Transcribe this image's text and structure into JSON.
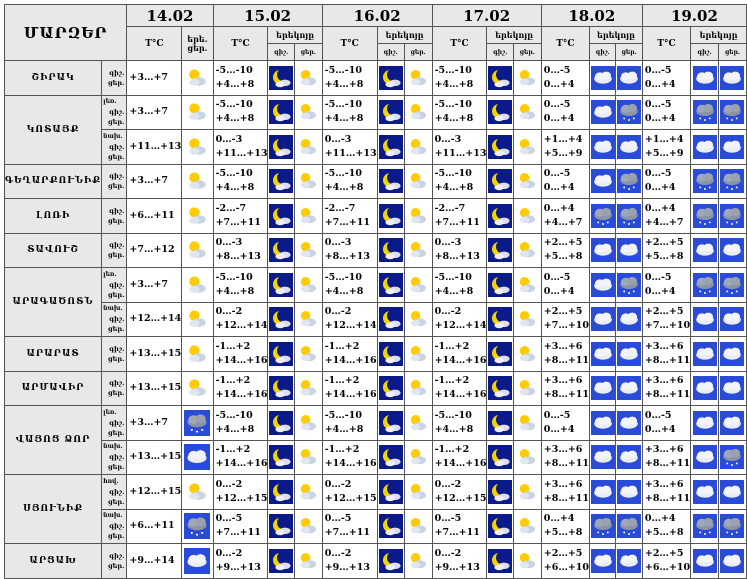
{
  "header": {
    "title": "ՄԱՐԶԵՐ",
    "unit": "T°C",
    "day_short": "երե.",
    "night_short": "ցեր.",
    "night_long": "երեկոյը",
    "night_abbr": "գիշ.",
    "day_abbr": "ցեր.",
    "dates": [
      "14.02",
      "15.02",
      "16.02",
      "17.02",
      "18.02",
      "19.02"
    ]
  },
  "regions": [
    {
      "name": "ՇԻՐԱԿ",
      "sub": "",
      "rows": [
        {
          "temps": [
            [
              "",
              "+3…+7"
            ],
            [
              "-5…-10",
              "+4…+8"
            ],
            [
              "-5…-10",
              "+4…+8"
            ],
            [
              "-5…-10",
              "+4…+8"
            ],
            [
              "0…-5",
              "0…+4"
            ],
            [
              "0…-5",
              "0…+4"
            ]
          ],
          "icons": [
            [
              "partly"
            ],
            [
              "moon",
              "partly"
            ],
            [
              "moon",
              "partly"
            ],
            [
              "moon",
              "partly"
            ],
            [
              "cloud",
              "cloud"
            ],
            [
              "cloud",
              "cloud"
            ]
          ]
        }
      ]
    },
    {
      "name": "ԿՈՏԱՅՔ",
      "sub": "",
      "rows": [
        {
          "sublabel": "լեռ.",
          "temps": [
            [
              "",
              "+3…+7"
            ],
            [
              "-5…-10",
              "+4…+8"
            ],
            [
              "-5…-10",
              "+4…+8"
            ],
            [
              "-5…-10",
              "+4…+8"
            ],
            [
              "0…-5",
              "0…+4"
            ],
            [
              "0…-5",
              "0…+4"
            ]
          ],
          "icons": [
            [
              "partly"
            ],
            [
              "moon",
              "partly"
            ],
            [
              "moon",
              "partly"
            ],
            [
              "moon",
              "partly"
            ],
            [
              "cloud",
              "darkcloud"
            ],
            [
              "darkcloud",
              "darkcloud"
            ]
          ]
        },
        {
          "sublabel": "նախ.",
          "temps": [
            [
              "",
              "+11…+13"
            ],
            [
              "0…-3",
              "+11…+13"
            ],
            [
              "0…-3",
              "+11…+13"
            ],
            [
              "0…-3",
              "+11…+13"
            ],
            [
              "+1…+4",
              "+5…+9"
            ],
            [
              "+1…+4",
              "+5…+9"
            ]
          ],
          "icons": [
            [
              "partly"
            ],
            [
              "moon",
              "partly"
            ],
            [
              "moon",
              "partly"
            ],
            [
              "moon",
              "partly"
            ],
            [
              "cloud",
              "cloud"
            ],
            [
              "cloud",
              "cloud"
            ]
          ]
        }
      ]
    },
    {
      "name": "ԳԵՂԱՐՔՈՒՆԻՔ",
      "sub": "",
      "rows": [
        {
          "temps": [
            [
              "",
              "+3…+7"
            ],
            [
              "-5…-10",
              "+4…+8"
            ],
            [
              "-5…-10",
              "+4…+8"
            ],
            [
              "-5…-10",
              "+4…+8"
            ],
            [
              "0…-5",
              "0…+4"
            ],
            [
              "0…-5",
              "0…+4"
            ]
          ],
          "icons": [
            [
              "partly"
            ],
            [
              "moon",
              "partly"
            ],
            [
              "moon",
              "partly"
            ],
            [
              "moon",
              "partly"
            ],
            [
              "cloud",
              "darkcloud"
            ],
            [
              "darkcloud",
              "darkcloud"
            ]
          ]
        }
      ]
    },
    {
      "name": "ԼՈՌԻ",
      "sub": "",
      "rows": [
        {
          "temps": [
            [
              "",
              "+6…+11"
            ],
            [
              "-2…-7",
              "+7…+11"
            ],
            [
              "-2…-7",
              "+7…+11"
            ],
            [
              "-2…-7",
              "+7…+11"
            ],
            [
              "0…+4",
              "+4…+7"
            ],
            [
              "0…+4",
              "+4…+7"
            ]
          ],
          "icons": [
            [
              "partly"
            ],
            [
              "moon",
              "partly"
            ],
            [
              "moon",
              "partly"
            ],
            [
              "moon",
              "partly"
            ],
            [
              "darkcloud",
              "darkcloud"
            ],
            [
              "darkcloud",
              "darkcloud"
            ]
          ]
        }
      ]
    },
    {
      "name": "ՏԱՎՈՒՇ",
      "sub": "",
      "rows": [
        {
          "temps": [
            [
              "",
              "+7…+12"
            ],
            [
              "0…-3",
              "+8…+13"
            ],
            [
              "0…-3",
              "+8…+13"
            ],
            [
              "0…-3",
              "+8…+13"
            ],
            [
              "+2…+5",
              "+5…+8"
            ],
            [
              "+2…+5",
              "+5…+8"
            ]
          ],
          "icons": [
            [
              "partly"
            ],
            [
              "moon",
              "partly"
            ],
            [
              "moon",
              "partly"
            ],
            [
              "moon",
              "partly"
            ],
            [
              "cloud",
              "cloud"
            ],
            [
              "cloud",
              "cloud"
            ]
          ]
        }
      ]
    },
    {
      "name": "ԱՐԱԳԱԾՈՏՆ",
      "sub": "",
      "rows": [
        {
          "sublabel": "լեռ.",
          "temps": [
            [
              "",
              "+3…+7"
            ],
            [
              "-5…-10",
              "+4…+8"
            ],
            [
              "-5…-10",
              "+4…+8"
            ],
            [
              "-5…-10",
              "+4…+8"
            ],
            [
              "0…-5",
              "0…+4"
            ],
            [
              "0…-5",
              "0…+4"
            ]
          ],
          "icons": [
            [
              "partly"
            ],
            [
              "moon",
              "partly"
            ],
            [
              "moon",
              "partly"
            ],
            [
              "moon",
              "partly"
            ],
            [
              "cloud",
              "darkcloud"
            ],
            [
              "darkcloud",
              "darkcloud"
            ]
          ]
        },
        {
          "sublabel": "նախ.",
          "temps": [
            [
              "",
              "+12…+14"
            ],
            [
              "0…-2",
              "+12…+14"
            ],
            [
              "0…-2",
              "+12…+14"
            ],
            [
              "0…-2",
              "+12…+14"
            ],
            [
              "+2…+5",
              "+7…+10"
            ],
            [
              "+2…+5",
              "+7…+10"
            ]
          ],
          "icons": [
            [
              "partly"
            ],
            [
              "moon",
              "partly"
            ],
            [
              "moon",
              "partly"
            ],
            [
              "moon",
              "partly"
            ],
            [
              "cloud",
              "cloud"
            ],
            [
              "cloud",
              "cloud"
            ]
          ]
        }
      ]
    },
    {
      "name": "ԱՐԱՐԱՏ",
      "sub": "",
      "rows": [
        {
          "temps": [
            [
              "",
              "+13…+15"
            ],
            [
              "-1…+2",
              "+14…+16"
            ],
            [
              "-1…+2",
              "+14…+16"
            ],
            [
              "-1…+2",
              "+14…+16"
            ],
            [
              "+3…+6",
              "+8…+11"
            ],
            [
              "+3…+6",
              "+8…+11"
            ]
          ],
          "icons": [
            [
              "partly"
            ],
            [
              "moon",
              "partly"
            ],
            [
              "moon",
              "partly"
            ],
            [
              "moon",
              "partly"
            ],
            [
              "cloud",
              "cloud"
            ],
            [
              "cloud",
              "cloud"
            ]
          ]
        }
      ]
    },
    {
      "name": "ԱՐՄԱՎԻՐ",
      "sub": "",
      "rows": [
        {
          "temps": [
            [
              "",
              "+13…+15"
            ],
            [
              "-1…+2",
              "+14…+16"
            ],
            [
              "-1…+2",
              "+14…+16"
            ],
            [
              "-1…+2",
              "+14…+16"
            ],
            [
              "+3…+6",
              "+8…+11"
            ],
            [
              "+3…+6",
              "+8…+11"
            ]
          ],
          "icons": [
            [
              "partly"
            ],
            [
              "moon",
              "partly"
            ],
            [
              "moon",
              "partly"
            ],
            [
              "moon",
              "partly"
            ],
            [
              "cloud",
              "cloud"
            ],
            [
              "cloud",
              "cloud"
            ]
          ]
        }
      ]
    },
    {
      "name": "ՎԱՅՈՑ ՁՈՐ",
      "sub": "",
      "rows": [
        {
          "sublabel": "լեռ.",
          "temps": [
            [
              "",
              "+3…+7"
            ],
            [
              "-5…-10",
              "+4…+8"
            ],
            [
              "-5…-10",
              "+4…+8"
            ],
            [
              "-5…-10",
              "+4…+8"
            ],
            [
              "0…-5",
              "0…+4"
            ],
            [
              "0…-5",
              "0…+4"
            ]
          ],
          "icons": [
            [
              "darkcloud"
            ],
            [
              "moon",
              "partly"
            ],
            [
              "moon",
              "partly"
            ],
            [
              "moon",
              "partly"
            ],
            [
              "cloud",
              "cloud"
            ],
            [
              "cloud",
              "cloud"
            ]
          ]
        },
        {
          "sublabel": "նախ.",
          "temps": [
            [
              "",
              "+13…+15"
            ],
            [
              "-1…+2",
              "+14…+16"
            ],
            [
              "-1…+2",
              "+14…+16"
            ],
            [
              "-1…+2",
              "+14…+16"
            ],
            [
              "+3…+6",
              "+8…+11"
            ],
            [
              "+3…+6",
              "+8…+11"
            ]
          ],
          "icons": [
            [
              "cloud"
            ],
            [
              "moon",
              "partly"
            ],
            [
              "moon",
              "partly"
            ],
            [
              "moon",
              "partly"
            ],
            [
              "cloud",
              "cloud"
            ],
            [
              "cloud",
              "darkcloud"
            ]
          ]
        }
      ]
    },
    {
      "name": "ՍՅՈՒՆԻՔ",
      "sub": "",
      "rows": [
        {
          "sublabel": "հով.",
          "temps": [
            [
              "",
              "+12…+15"
            ],
            [
              "0…-2",
              "+12…+15"
            ],
            [
              "0…-2",
              "+12…+15"
            ],
            [
              "0…-2",
              "+12…+15"
            ],
            [
              "+3…+6",
              "+8…+11"
            ],
            [
              "+3…+6",
              "+8…+11"
            ]
          ],
          "icons": [
            [
              "partly"
            ],
            [
              "moon",
              "partly"
            ],
            [
              "moon",
              "partly"
            ],
            [
              "moon",
              "partly"
            ],
            [
              "cloud",
              "cloud"
            ],
            [
              "cloud",
              "cloud"
            ]
          ]
        },
        {
          "sublabel": "նախ.",
          "temps": [
            [
              "",
              "+6…+11"
            ],
            [
              "0…-5",
              "+7…+11"
            ],
            [
              "0…-5",
              "+7…+11"
            ],
            [
              "0…-5",
              "+7…+11"
            ],
            [
              "0…+4",
              "+5…+8"
            ],
            [
              "0…+4",
              "+5…+8"
            ]
          ],
          "icons": [
            [
              "darkcloud"
            ],
            [
              "moon",
              "partly"
            ],
            [
              "moon",
              "partly"
            ],
            [
              "moon",
              "partly"
            ],
            [
              "darkcloud",
              "darkcloud"
            ],
            [
              "darkcloud",
              "darkcloud"
            ]
          ]
        }
      ]
    },
    {
      "name": "ԱՐՑԱԽ",
      "sub": "",
      "rows": [
        {
          "temps": [
            [
              "",
              "+9…+14"
            ],
            [
              "0…-2",
              "+9…+13"
            ],
            [
              "0…-2",
              "+9…+13"
            ],
            [
              "0…-2",
              "+9…+13"
            ],
            [
              "+2…+5",
              "+6…+10"
            ],
            [
              "+2…+5",
              "+6…+10"
            ]
          ],
          "icons": [
            [
              "cloud"
            ],
            [
              "moon",
              "partly"
            ],
            [
              "moon",
              "partly"
            ],
            [
              "moon",
              "partly"
            ],
            [
              "cloud",
              "cloud"
            ],
            [
              "cloud",
              "cloud"
            ]
          ]
        }
      ]
    }
  ],
  "colors": {
    "sky": "#2a4bd8",
    "night": "#0a1a88",
    "grid": "#555555",
    "header_bg": "#e8e8e8"
  }
}
